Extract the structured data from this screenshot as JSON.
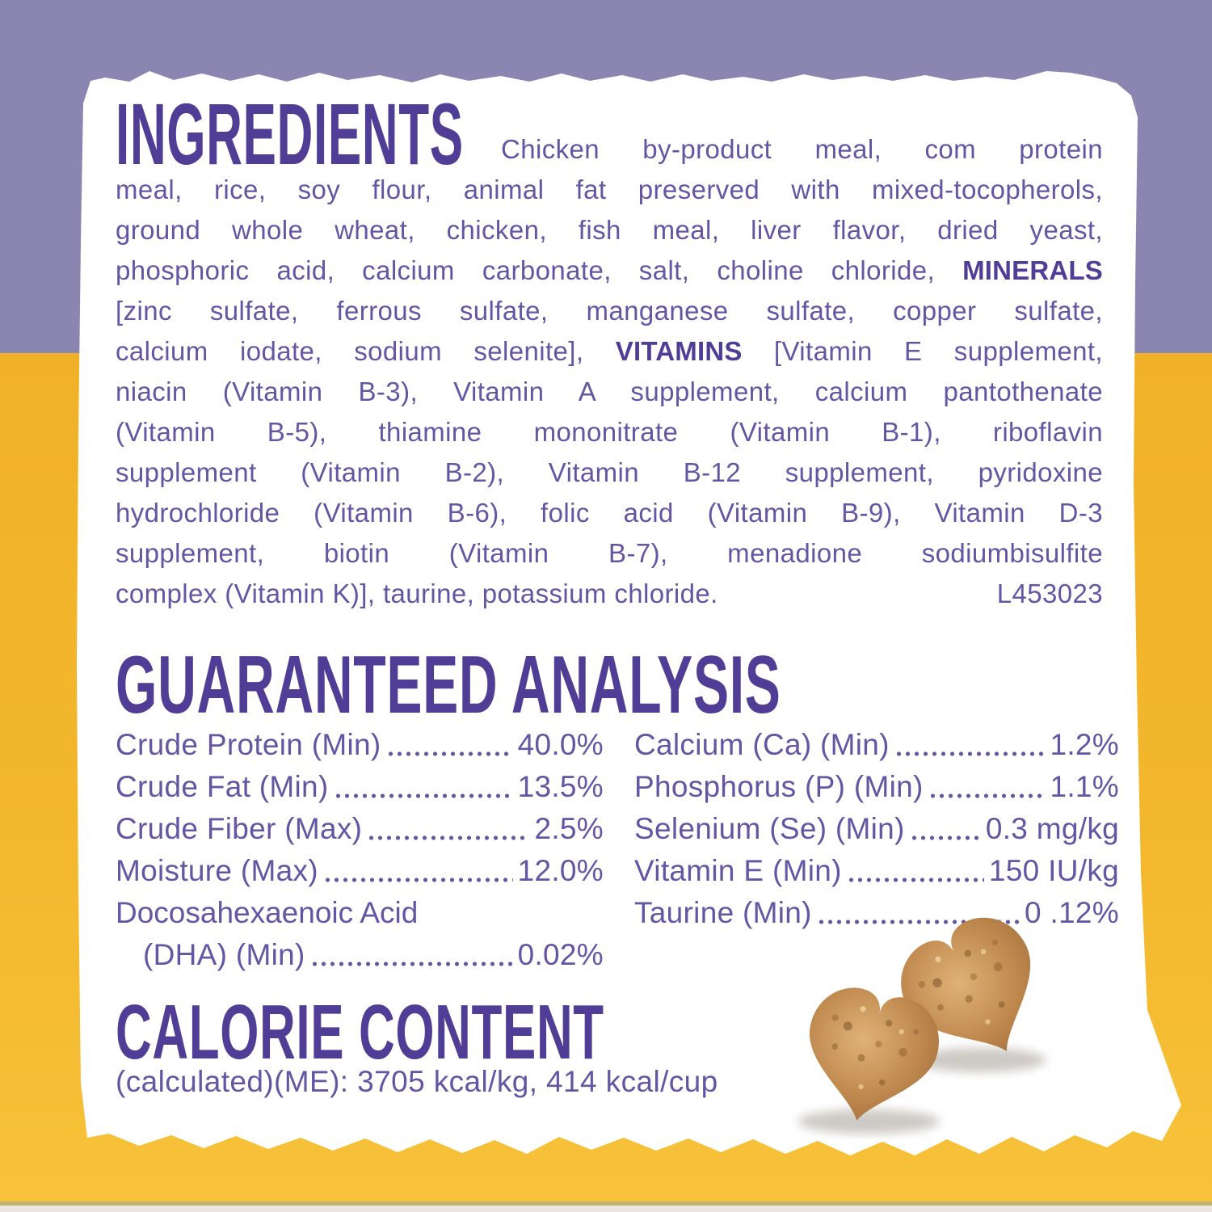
{
  "label": {
    "ingredients": {
      "heading": "INGREDIENTS",
      "lines": [
        "Chicken by-product meal, com protein",
        "meal, rice, soy flour, animal fat preserved with mixed-tocopherols,",
        "ground whole wheat, chicken, fish meal, liver flavor, dried yeast,",
        "phosphoric acid, calcium carbonate, salt, choline chloride, **MINERALS**",
        "[zinc sulfate, ferrous sulfate, manganese sulfate, copper sulfate,",
        "calcium iodate, sodium selenite], **VITAMINS** [Vitamin E supplement,",
        "niacin (Vitamin B-3), Vitamin A supplement, calcium pantothenate",
        "(Vitamin B-5), thiamine mononitrate (Vitamin B-1), riboflavin",
        "supplement (Vitamin B-2), Vitamin B-12 supplement, pyridoxine",
        "hydrochloride (Vitamin B-6), folic acid (Vitamin B-9), Vitamin D-3",
        "supplement, biotin (Vitamin B-7), menadione sodiumbisulfite"
      ],
      "last_line_text": "complex (Vitamin K)], taurine, potassium chloride.",
      "lot_code": "L453023"
    },
    "guaranteed_analysis": {
      "heading": "GUARANTEED ANALYSIS",
      "left_rows": [
        {
          "label": "Crude Protein (Min)",
          "value": "40.0%"
        },
        {
          "label": "Crude Fat (Min)",
          "value": "13.5%"
        },
        {
          "label": "Crude Fiber (Max)",
          "value": "2.5%"
        },
        {
          "label": "Moisture (Max)",
          "value": "12.0%"
        },
        {
          "label": "Docosahexaenoic Acid",
          "value": ""
        },
        {
          "label": "(DHA) (Min)",
          "value": "0.02%",
          "indent": true
        }
      ],
      "right_rows": [
        {
          "label": "Calcium (Ca) (Min)",
          "value": "1.2%"
        },
        {
          "label": "Phosphorus (P) (Min)",
          "value": "1.1%"
        },
        {
          "label": "Selenium (Se) (Min)",
          "value": "0.3 mg/kg"
        },
        {
          "label": "Vitamin E (Min)",
          "value": "150 IU/kg"
        },
        {
          "label": "Taurine (Min)",
          "value": "0 .12%"
        }
      ]
    },
    "calorie_content": {
      "heading": "CALORIE CONTENT",
      "detail": "(calculated)(ME): 3705 kcal/kg, 414 kcal/cup"
    }
  },
  "colors": {
    "background_purple": "#8b85b1",
    "background_yellow": "#f3b72d",
    "heading_purple": "#4f3d96",
    "body_text_purple": "#6257a3",
    "label_white": "#ffffff",
    "kibble_brown": "#c18b50"
  },
  "kibble": {
    "description": "two heart-shaped kibble pieces"
  }
}
